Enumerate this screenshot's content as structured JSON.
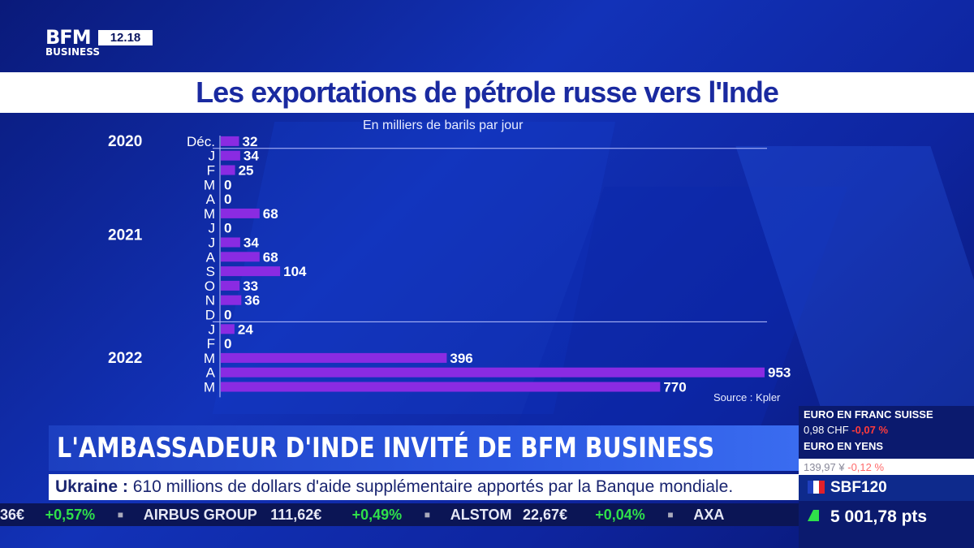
{
  "channel": {
    "logo_top": "BFM",
    "logo_bottom": "BUSINESS",
    "clock": "12.18"
  },
  "title": "Les exportations de pétrole russe vers l'Inde",
  "colors": {
    "bar": "#8a2be2",
    "title_text": "#1a2aa0",
    "background": "#1232b8"
  },
  "chart_data": {
    "type": "bar",
    "orientation": "horizontal",
    "subtitle": "En milliers de barils par jour",
    "source": "Source : Kpler",
    "year_groups": [
      {
        "label": "2020",
        "months": [
          "Déc."
        ]
      },
      {
        "label": "2021",
        "months": [
          "J",
          "F",
          "M",
          "A",
          "M",
          "J",
          "J",
          "A",
          "S",
          "O",
          "N",
          "D"
        ]
      },
      {
        "label": "2022",
        "months": [
          "J",
          "F",
          "M",
          "A",
          "M"
        ]
      }
    ],
    "categories": [
      "Déc.",
      "J",
      "F",
      "M",
      "A",
      "M",
      "J",
      "J",
      "A",
      "S",
      "O",
      "N",
      "D",
      "J",
      "F",
      "M",
      "A",
      "M"
    ],
    "values": [
      32,
      34,
      25,
      0,
      0,
      68,
      0,
      34,
      68,
      104,
      33,
      36,
      0,
      24,
      0,
      396,
      953,
      770
    ],
    "xlim": [
      0,
      953
    ],
    "grid": false
  },
  "lower_third": {
    "headline": "L'AMBASSADEUR D'INDE INVITÉ DE BFM BUSINESS",
    "news_label": "Ukraine :",
    "news_text": " 610 millions de dollars d'aide supplémentaire apportés par la Banque mondiale."
  },
  "ticker": {
    "items": [
      {
        "text": "36€",
        "class": "white"
      },
      {
        "text": "+0,57%",
        "class": "green"
      },
      {
        "text": "■",
        "class": "sep"
      },
      {
        "text": "AIRBUS GROUP",
        "class": "white"
      },
      {
        "text": "111,62€",
        "class": "white"
      },
      {
        "text": "+0,49%",
        "class": "green"
      },
      {
        "text": "■",
        "class": "sep"
      },
      {
        "text": "ALSTOM",
        "class": "white"
      },
      {
        "text": "22,67€",
        "class": "white"
      },
      {
        "text": "+0,04%",
        "class": "green"
      },
      {
        "text": "■",
        "class": "sep"
      },
      {
        "text": "AXA",
        "class": "white"
      }
    ]
  },
  "markets": {
    "fx1_title": "EURO EN FRANC SUISSE",
    "fx1_value": "0,98 CHF",
    "fx1_change": "-0,07 %",
    "fx2_title": "EURO EN YENS",
    "fx2_value": "139,97 ¥",
    "fx2_change": "-0,12 %",
    "index_name": "SBF120",
    "index_value": "5 001,78 pts",
    "flag_colors": [
      "#1f3fbf",
      "#ffffff",
      "#e0202a"
    ]
  }
}
